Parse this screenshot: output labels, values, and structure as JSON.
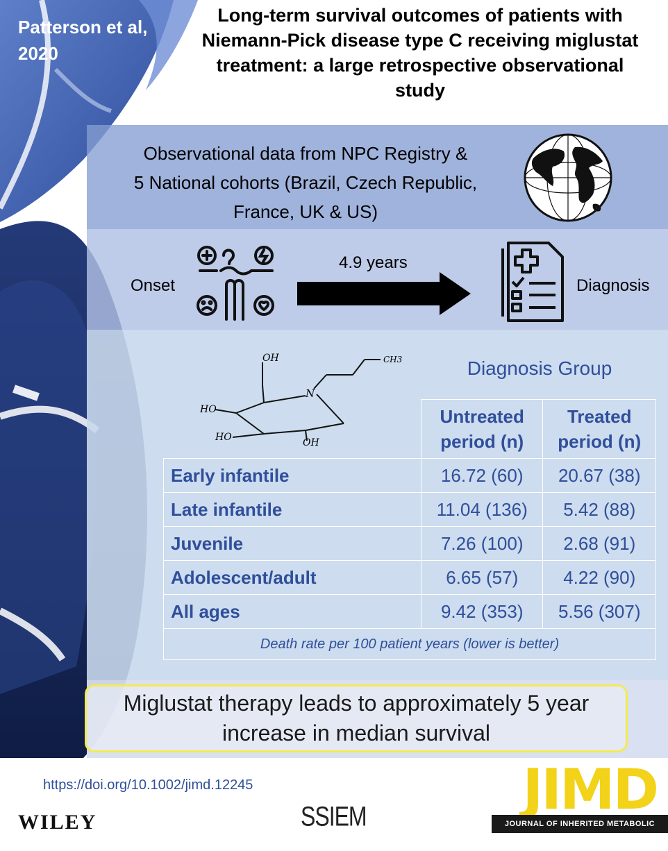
{
  "header": {
    "author": "Patterson et al,",
    "year": "2020",
    "title": "Long-term survival outcomes of patients with Niemann-Pick disease type C receiving miglustat treatment: a large retrospective observational study"
  },
  "observational": {
    "line1": "Observational data from NPC Registry &",
    "line2": "5 National cohorts (Brazil, Czech Republic,",
    "line3": "France, UK & US)",
    "icon": "globe-icon"
  },
  "timeline": {
    "onset_label": "Onset",
    "interval_label": "4.9 years",
    "diagnosis_label": "Diagnosis",
    "icons": [
      "symptoms-icon",
      "arrow-right-icon",
      "checklist-icon"
    ]
  },
  "molecule": {
    "labels": [
      "OH",
      "CH3",
      "N",
      "HO",
      "HO",
      "OH"
    ]
  },
  "table": {
    "group_title": "Diagnosis Group",
    "col_untreated_line1": "Untreated",
    "col_untreated_line2": "period (n)",
    "col_treated_line1": "Treated",
    "col_treated_line2": "period (n)",
    "rows": [
      {
        "label": "Early infantile",
        "untreated": "16.72 (60)",
        "treated": "20.67 (38)"
      },
      {
        "label": "Late infantile",
        "untreated": "11.04 (136)",
        "treated": "5.42 (88)"
      },
      {
        "label": "Juvenile",
        "untreated": "7.26 (100)",
        "treated": "2.68 (91)"
      },
      {
        "label": "Adolescent/adult",
        "untreated": "6.65 (57)",
        "treated": "4.22 (90)"
      },
      {
        "label": "All ages",
        "untreated": "9.42 (353)",
        "treated": "5.56 (307)"
      }
    ],
    "footnote": "Death rate per 100 patient years (lower is better)"
  },
  "summary": {
    "line1": "Miglustat therapy leads to approximately 5 year",
    "line2": "increase in median survival"
  },
  "footer": {
    "doi": "https://doi.org/10.1002/jimd.12245",
    "wiley": "WILEY",
    "ssiem": "SSIEM",
    "jimd": "JIMD",
    "jimd_subtitle": "JOURNAL OF INHERITED METABOLIC DISEASE"
  },
  "colors": {
    "accent_blue": "#2f4f9b",
    "navy": "#1c2f66",
    "yellow": "#f3d21a"
  }
}
